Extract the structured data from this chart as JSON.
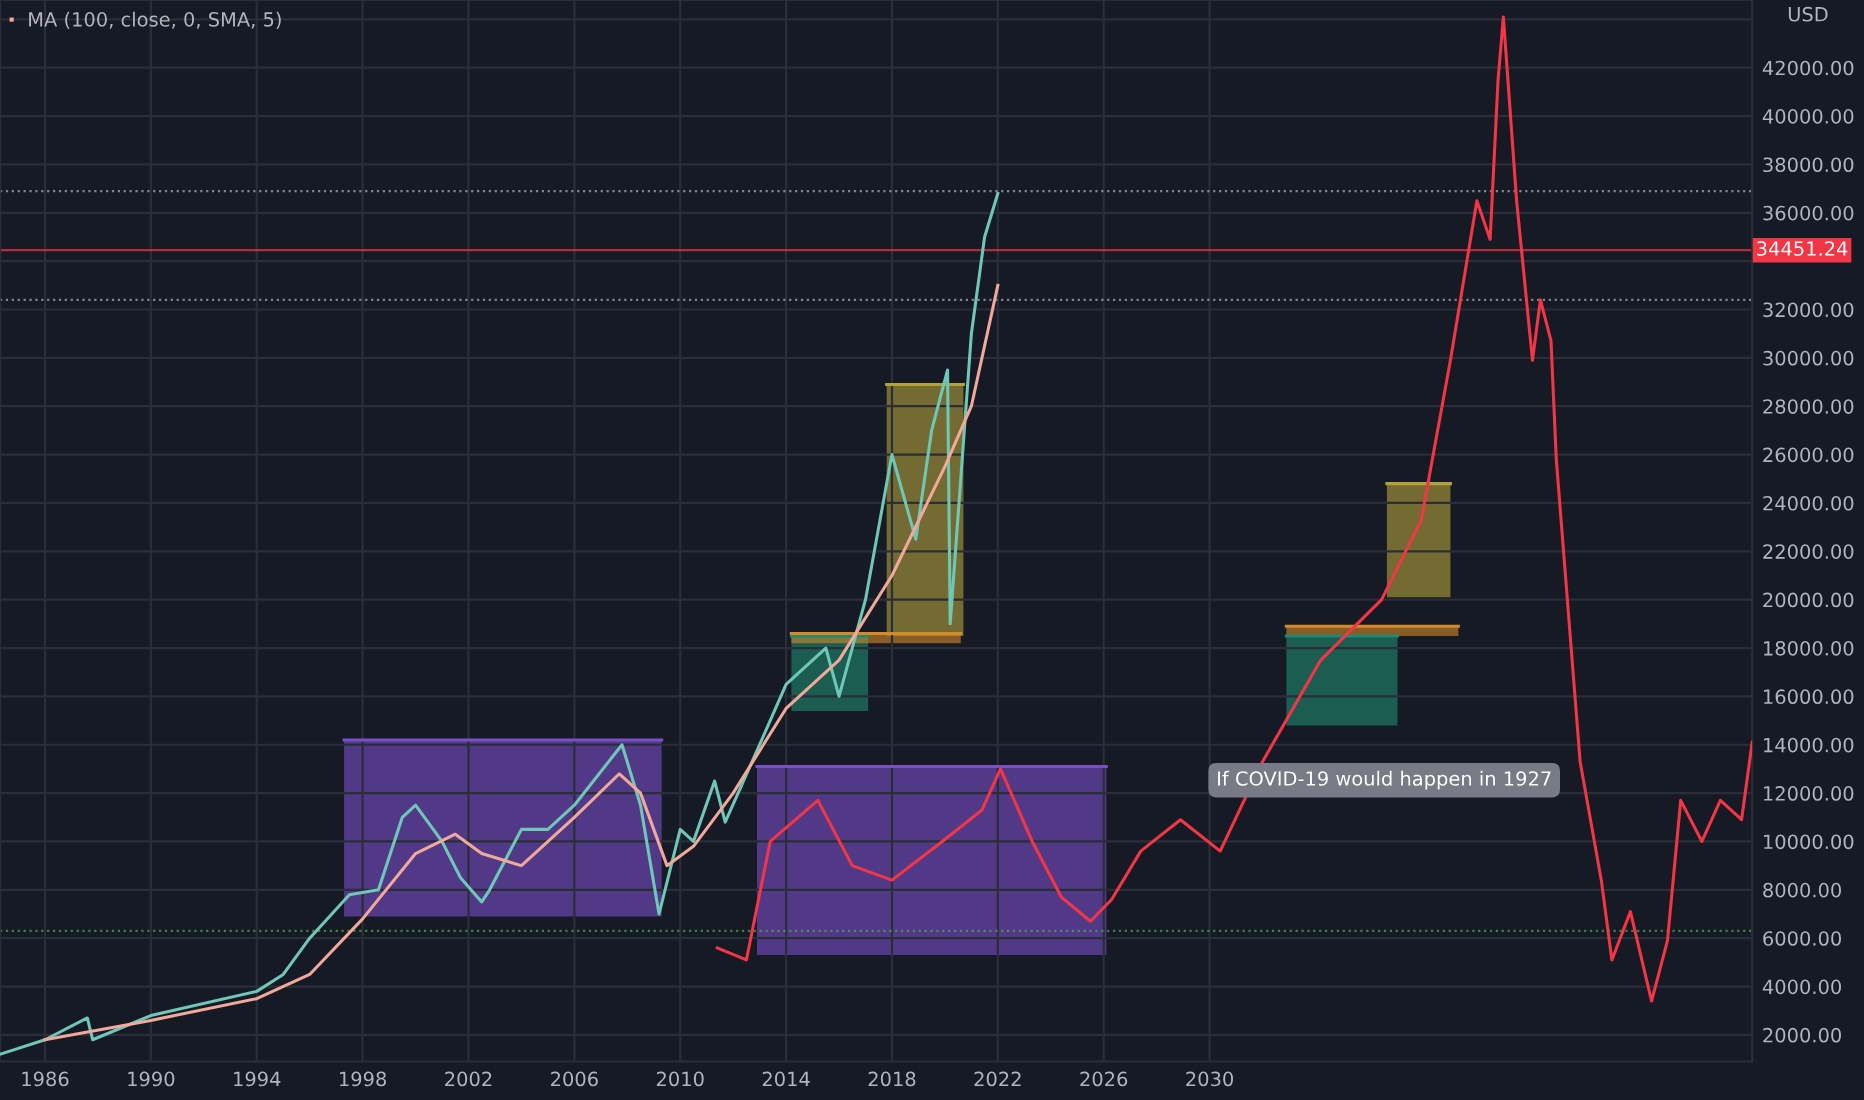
{
  "chart_data": {
    "type": "line",
    "ylabel": "USD",
    "legend": "top left",
    "grid": true,
    "marker": "none",
    "line_style": "solid",
    "xlim": [
      1984.3,
      2050.5
    ],
    "xticks": [
      1986,
      1990,
      1994,
      1998,
      2002,
      2006,
      2010,
      2014,
      2018,
      2022,
      2026,
      2030
    ],
    "ylim": [
      900,
      44800
    ],
    "yticks": [
      {
        "value": 2000,
        "label": "2000.00"
      },
      {
        "value": 4000,
        "label": "4000.00"
      },
      {
        "value": 6000,
        "label": "6000.00"
      },
      {
        "value": 8000,
        "label": "8000.00"
      },
      {
        "value": 10000,
        "label": "10000.00"
      },
      {
        "value": 12000,
        "label": "12000.00"
      },
      {
        "value": 14000,
        "label": "14000.00"
      },
      {
        "value": 16000,
        "label": "16000.00"
      },
      {
        "value": 18000,
        "label": "18000.00"
      },
      {
        "value": 20000,
        "label": "20000.00"
      },
      {
        "value": 22000,
        "label": "22000.00"
      },
      {
        "value": 24000,
        "label": "24000.00"
      },
      {
        "value": 26000,
        "label": "26000.00"
      },
      {
        "value": 28000,
        "label": "28000.00"
      },
      {
        "value": 30000,
        "label": "30000.00"
      },
      {
        "value": 32000,
        "label": "32000.00"
      },
      {
        "value": 34000,
        "label": null
      },
      {
        "value": 36000,
        "label": "36000.00"
      },
      {
        "value": 38000,
        "label": "38000.00"
      },
      {
        "value": 40000,
        "label": "40000.00"
      },
      {
        "value": 42000,
        "label": "42000.00"
      },
      {
        "value": 44000,
        "label": null
      }
    ],
    "series": [
      {
        "color": "#7b4fc9",
        "x": [
          1997.3,
          2009.3
        ],
        "values": [
          14200,
          14200
        ],
        "lower": [
          6900,
          6900
        ],
        "upper": [
          14200,
          14200
        ]
      },
      {
        "color": "#7b4fc9",
        "x": [
          2012.9,
          2026.1
        ],
        "values": [
          13100,
          13100
        ],
        "lower": [
          5300,
          5300
        ],
        "upper": [
          13100,
          13100
        ]
      },
      {
        "color": "#1f8a70",
        "x": [
          2014.2,
          2017.1
        ],
        "values": [
          18500,
          18500
        ],
        "lower": [
          15400,
          15400
        ],
        "upper": [
          18500,
          18500
        ]
      },
      {
        "color": "#d4892a",
        "x": [
          2014.2,
          2020.6
        ],
        "values": [
          18600,
          18600
        ],
        "lower": [
          18200,
          18200
        ],
        "upper": [
          18600,
          18600
        ]
      },
      {
        "color": "#b3a23a",
        "x": [
          2017.8,
          2020.7
        ],
        "values": [
          28900,
          28900
        ],
        "lower": [
          18500,
          18500
        ],
        "upper": [
          28900,
          28900
        ]
      },
      {
        "color": "#1f8a70",
        "x": [
          2032.9,
          2037.1
        ],
        "values": [
          18500,
          18500
        ],
        "lower": [
          14800,
          14800
        ],
        "upper": [
          18500,
          18500
        ]
      },
      {
        "color": "#d4892a",
        "x": [
          2032.9,
          2039.4
        ],
        "values": [
          18900,
          18900
        ],
        "lower": [
          18500,
          18500
        ],
        "upper": [
          18900,
          18900
        ]
      },
      {
        "color": "#b3a23a",
        "x": [
          2036.7,
          2039.1
        ],
        "values": [
          24800,
          24800
        ],
        "lower": [
          20100,
          20100
        ],
        "upper": [
          24800,
          24800
        ]
      },
      {
        "color": "#6fc7b7",
        "x": [
          1984.3,
          1986,
          1987.6,
          1987.8,
          1990,
          1994,
          1995,
          1996,
          1997.5,
          1998.6,
          1999.5,
          2000,
          2001,
          2001.7,
          2002.5,
          2002.8,
          2004,
          2005,
          2006,
          2007.8,
          2008.5,
          2009.2,
          2010,
          2010.5,
          2011.3,
          2011.7,
          2013,
          2014,
          2015.5,
          2016,
          2017,
          2018,
          2018.9,
          2019.5,
          2020.1,
          2020.2,
          2020.8,
          2021,
          2021.5,
          2022
        ],
        "values": [
          1200,
          1800,
          2700,
          1800,
          2800,
          3800,
          4500,
          6000,
          7800,
          8000,
          11000,
          11500,
          10000,
          8500,
          7500,
          8000,
          10500,
          10500,
          11500,
          14000,
          11500,
          7000,
          10500,
          10000,
          12500,
          10800,
          14000,
          16500,
          18000,
          16000,
          20000,
          26000,
          22500,
          27000,
          29500,
          19000,
          28000,
          31000,
          35000,
          36800
        ]
      },
      {
        "name": "MA (100, close, 0, SMA, 5)",
        "color": "#f0a99a",
        "x": [
          1986,
          1990,
          1994,
          1996,
          1998,
          2000,
          2001.5,
          2002.5,
          2004,
          2006,
          2007.7,
          2008.5,
          2009.5,
          2010.5,
          2012,
          2014,
          2016,
          2018,
          2020,
          2021,
          2022
        ],
        "values": [
          1800,
          2600,
          3500,
          4500,
          6800,
          9500,
          10300,
          9500,
          9000,
          11000,
          12800,
          12000,
          9000,
          9800,
          12000,
          15500,
          17500,
          21000,
          25500,
          28000,
          33000
        ]
      },
      {
        "color": "#f23645",
        "x": [
          2011.4,
          2012.5,
          2013.4,
          2015.2,
          2016.5,
          2018.0,
          2019.9,
          2021.4,
          2022.1,
          2023.3,
          2024.4,
          2025.5,
          2026.3,
          2027.4,
          2028.9,
          2030.4,
          2032.0,
          2034.2,
          2036.5,
          2038.0,
          2039.1,
          2040.1,
          2040.6,
          2040.9,
          2041.1,
          2041.6,
          2042.2,
          2042.5,
          2042.9,
          2043.1,
          2044.0,
          2044.8,
          2045.2,
          2045.9,
          2046.7,
          2047.3,
          2047.8,
          2048.6,
          2049.3,
          2050.1,
          2050.5
        ],
        "values": [
          5600,
          5100,
          10000,
          11700,
          9000,
          8400,
          10000,
          11300,
          13000,
          10000,
          7700,
          6700,
          7600,
          9600,
          10900,
          9600,
          13300,
          17500,
          20000,
          23300,
          29900,
          36500,
          34900,
          41500,
          44100,
          36500,
          29900,
          32400,
          30700,
          25800,
          13300,
          8400,
          5100,
          7100,
          3400,
          5900,
          11700,
          10000,
          11700,
          10900,
          14100
        ]
      }
    ],
    "ref_lines": [
      {
        "axis": "y",
        "value": 36900,
        "color": "#b0b3bd",
        "line_style": "dotted"
      },
      {
        "axis": "y",
        "value": 32400,
        "color": "#b0b3bd",
        "line_style": "dotted"
      },
      {
        "axis": "y",
        "value": 6300,
        "color": "#4caf50",
        "line_style": "dotted"
      },
      {
        "axis": "y",
        "value": 34451.24,
        "label": "34451.24",
        "color": "#f23645",
        "line_style": "solid"
      }
    ],
    "annotations": [
      "If COVID-19 would happen in 1927"
    ]
  }
}
